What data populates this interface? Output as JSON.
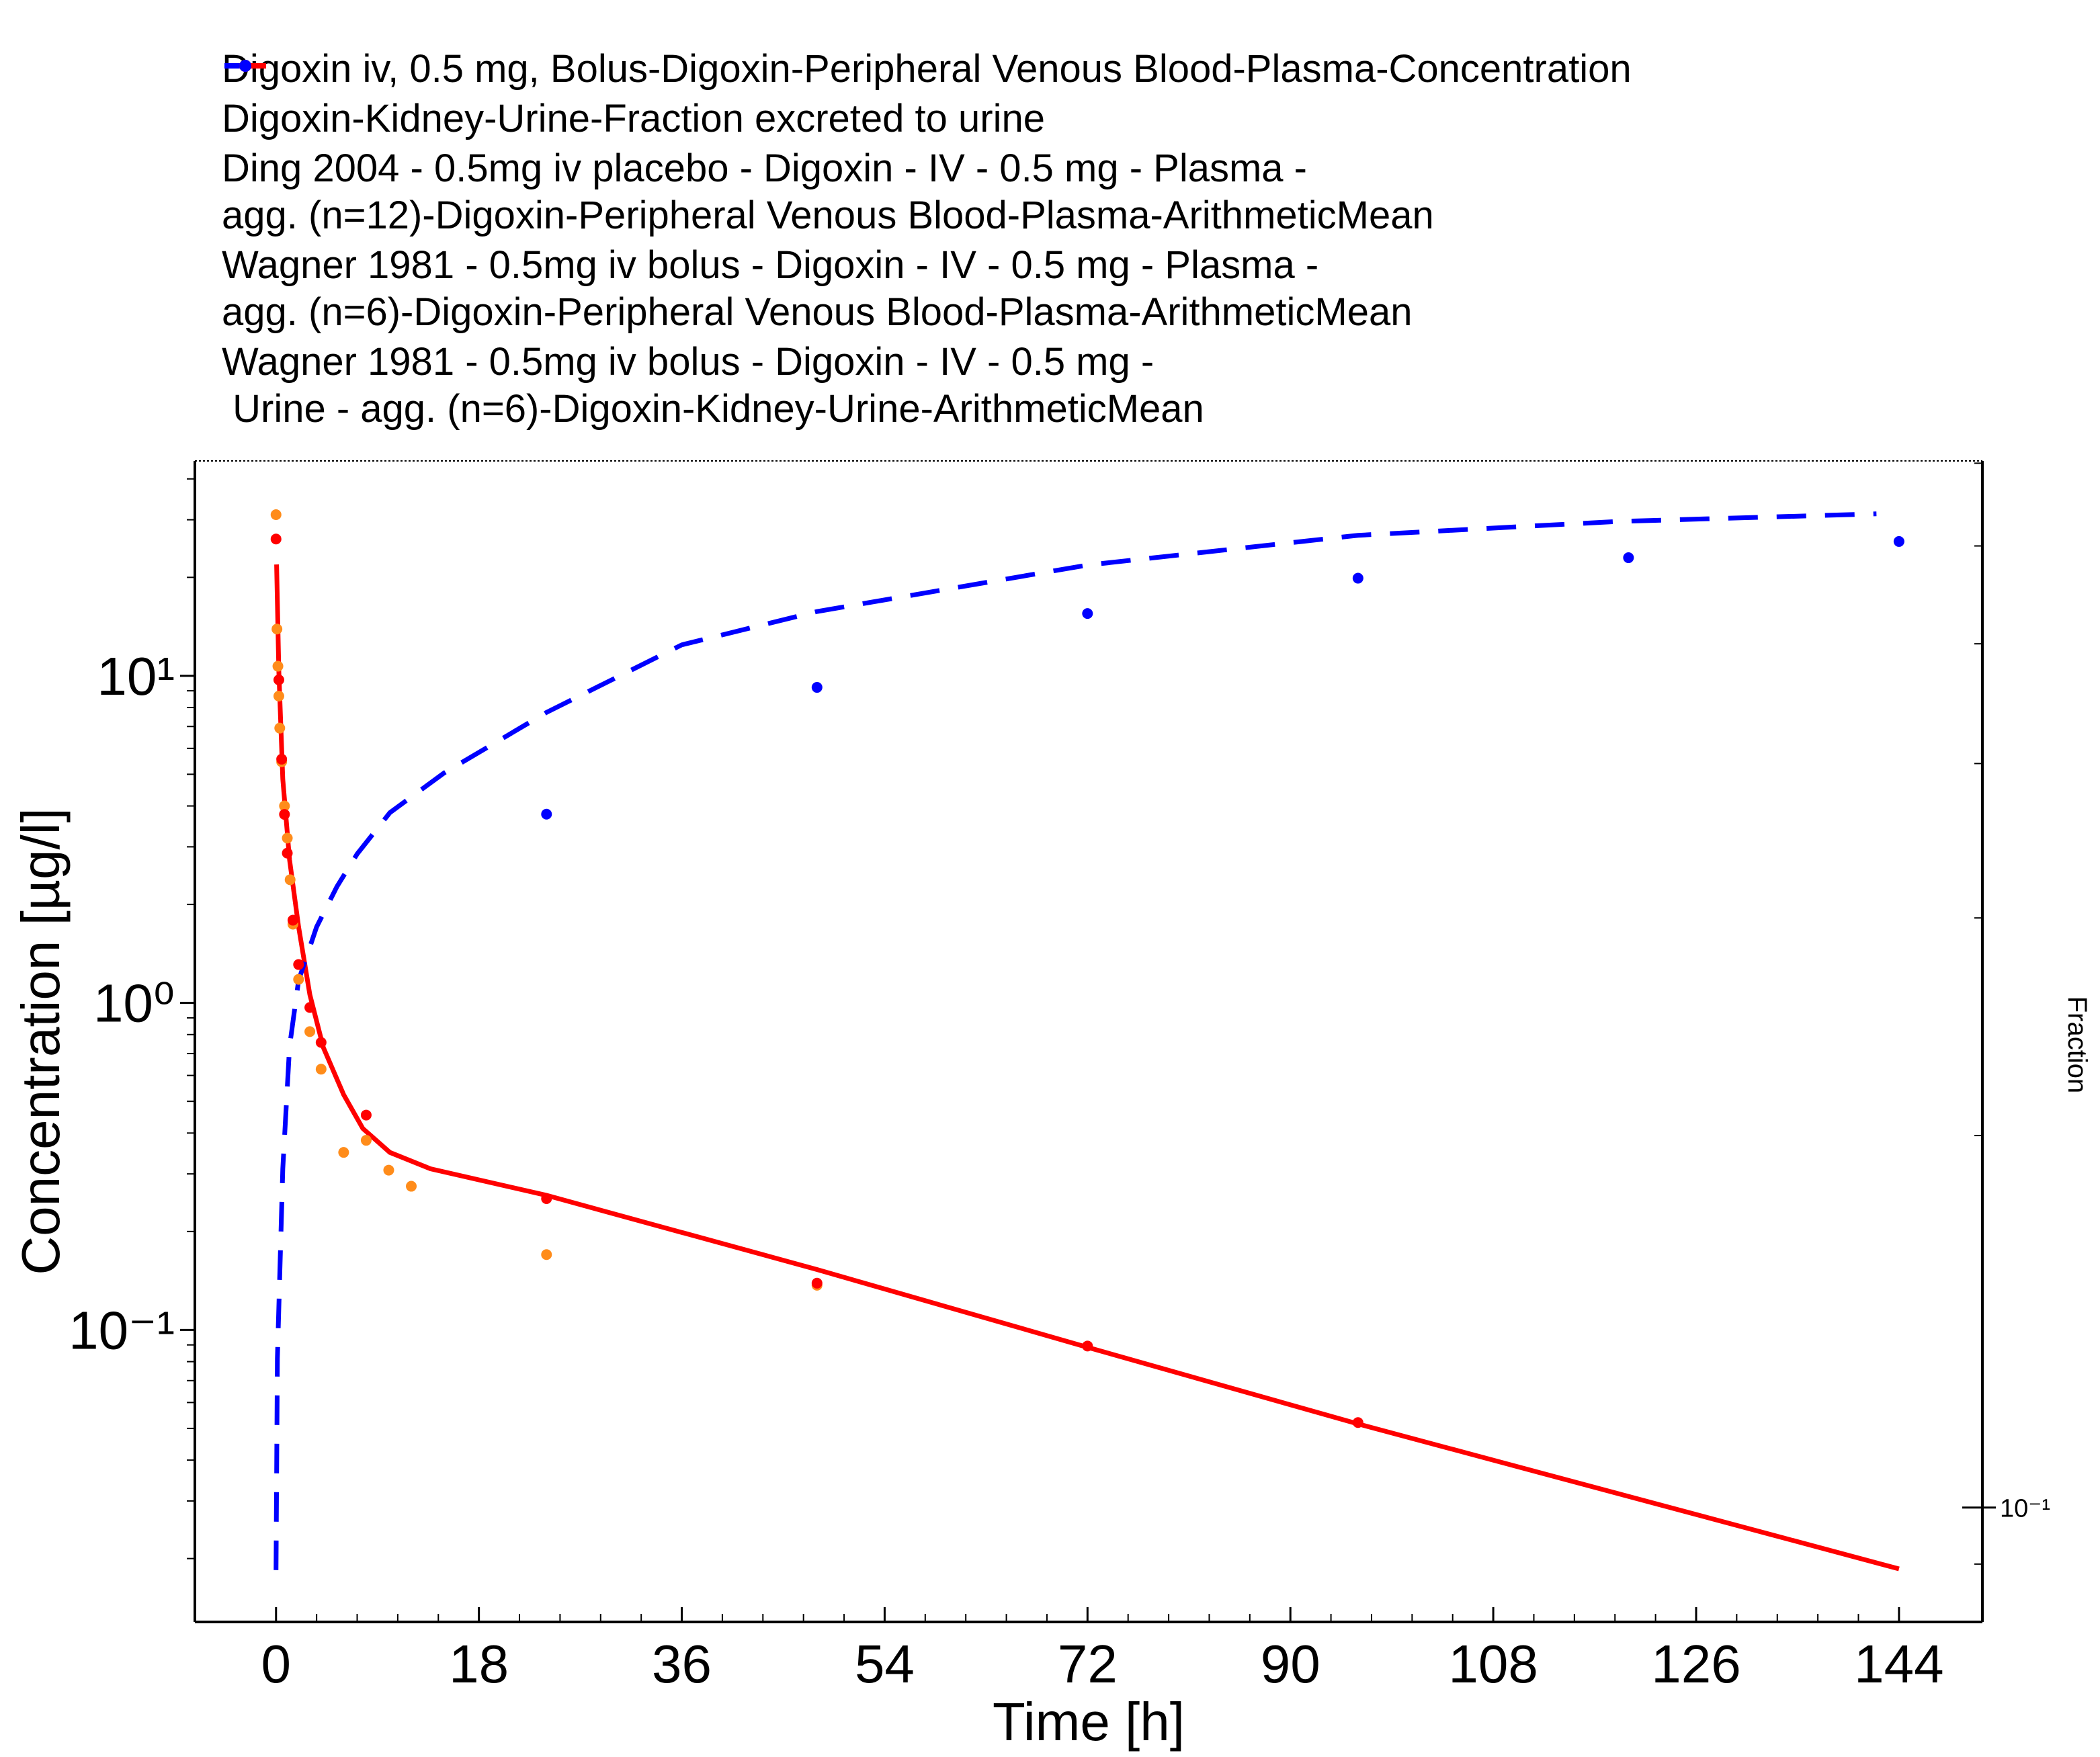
{
  "chart_data": {
    "type": "line",
    "x_label": "Time [h]",
    "y_label": "Concentration [µg/l]",
    "y2_label": "Fraction",
    "log_y": true,
    "log_y2": true,
    "xlim": [
      -7.2,
      151.4
    ],
    "xticks": [
      0,
      18,
      36,
      54,
      72,
      90,
      108,
      126,
      144
    ],
    "ylim": [
      0.0128,
      45.4
    ],
    "yticks": [
      {
        "value": 0.1,
        "label": "10⁻¹"
      },
      {
        "value": 1,
        "label": "10⁰"
      },
      {
        "value": 10,
        "label": "10¹"
      }
    ],
    "y2lim": [
      0.0808,
      0.703
    ],
    "y2ticks": [
      {
        "value": 0.1,
        "label": "10⁻¹"
      }
    ],
    "series": [
      {
        "name": "Digoxin iv, 0.5 mg, Bolus-Digoxin-Peripheral Venous Blood-Plasma-Concentration",
        "color": "#ff0000",
        "kind": "line",
        "linestyle": "solid",
        "x": [
          0.05,
          0.25,
          0.6,
          1.2,
          2,
          3,
          4.2,
          6,
          7.7,
          10.1,
          13.7,
          24,
          48,
          72,
          96,
          144
        ],
        "values": [
          21.9,
          10.3,
          4.83,
          2.74,
          1.71,
          1.06,
          0.73,
          0.524,
          0.413,
          0.349,
          0.311,
          0.258,
          0.153,
          0.0885,
          0.0516,
          0.0186
        ]
      },
      {
        "name": "Digoxin-Kidney-Urine-Fraction excreted to urine",
        "color": "#0000ff",
        "kind": "line",
        "linestyle": "dashed",
        "axis": "y2",
        "x": [
          0,
          0.12,
          0.6,
          1.2,
          2,
          3.6,
          5.4,
          7.2,
          10.1,
          14.9,
          24,
          36,
          48,
          72,
          96,
          119,
          142
        ],
        "values": [
          0.089,
          0.132,
          0.188,
          0.236,
          0.267,
          0.295,
          0.318,
          0.338,
          0.365,
          0.393,
          0.44,
          0.499,
          0.531,
          0.579,
          0.612,
          0.628,
          0.637
        ]
      },
      {
        "name": "Ding 2004 - 0.5mg iv placebo - Digoxin - IV - 0.5 mg - Plasma -\nagg. (n=12)-Digoxin-Peripheral Venous Blood-Plasma-ArithmeticMean",
        "color": "#ff8c1a",
        "kind": "scatter",
        "x": [
          0,
          0.083,
          0.167,
          0.25,
          0.33,
          0.5,
          0.75,
          1,
          1.25,
          1.5,
          2,
          3,
          4,
          6,
          8,
          10,
          12,
          24,
          48
        ],
        "values": [
          31.1,
          13.9,
          10.7,
          8.67,
          6.92,
          5.46,
          4.0,
          3.19,
          2.38,
          1.74,
          1.18,
          0.817,
          0.627,
          0.349,
          0.38,
          0.308,
          0.275,
          0.17,
          0.137
        ]
      },
      {
        "name": "Wagner 1981 - 0.5mg iv bolus - Digoxin - IV - 0.5 mg - Plasma -\nagg. (n=6)-Digoxin-Peripheral Venous Blood-Plasma-ArithmeticMean",
        "color": "#ff0000",
        "kind": "scatter",
        "x": [
          0,
          0.25,
          0.5,
          0.75,
          1,
          1.5,
          2,
          3,
          4,
          8,
          24,
          48,
          72,
          96
        ],
        "values": [
          26.2,
          9.72,
          5.56,
          3.77,
          2.87,
          1.79,
          1.31,
          0.968,
          0.757,
          0.454,
          0.252,
          0.139,
          0.0893,
          0.0521
        ]
      },
      {
        "name": "Wagner 1981 - 0.5mg iv bolus - Digoxin - IV - 0.5 mg -\n Urine - agg. (n=6)-Digoxin-Kidney-Urine-ArithmeticMean",
        "color": "#0000ff",
        "kind": "scatter",
        "axis": "y2",
        "x": [
          24,
          48,
          72,
          96,
          120,
          144
        ],
        "values": [
          0.364,
          0.461,
          0.529,
          0.565,
          0.587,
          0.605
        ]
      }
    ]
  }
}
